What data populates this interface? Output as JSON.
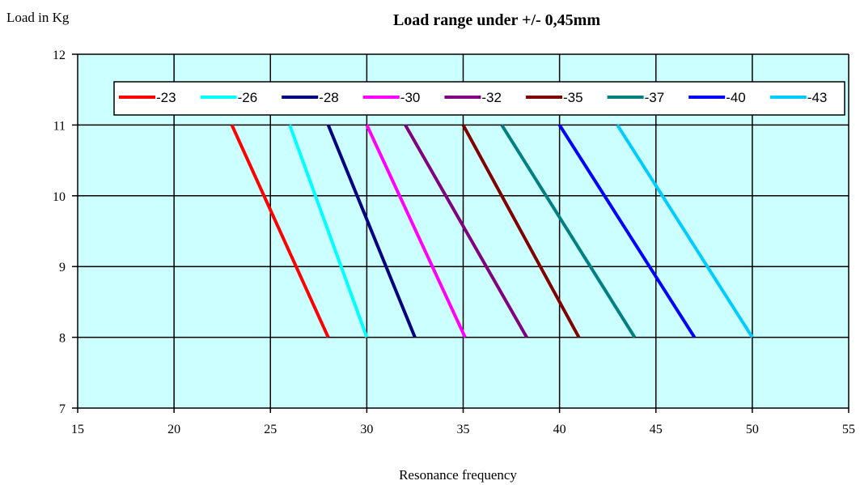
{
  "chart_data": {
    "type": "line",
    "title": "Load range under +/- 0,45mm",
    "xlabel": "Resonance frequency",
    "ylabel": "Load in Kg",
    "xlim": [
      15,
      55
    ],
    "ylim": [
      7,
      12
    ],
    "xticks": [
      "15",
      "20",
      "25",
      "30",
      "35",
      "40",
      "45",
      "50",
      "55"
    ],
    "yticks": [
      "7",
      "8",
      "9",
      "10",
      "11",
      "12"
    ],
    "grid": true,
    "plot_background": "#ccffff",
    "legend_position": "top (inside plot area)",
    "series": [
      {
        "name": "-23",
        "color": "#ff0000",
        "points": [
          [
            23,
            11
          ],
          [
            28,
            8
          ]
        ]
      },
      {
        "name": "-26",
        "color": "#00ffff",
        "points": [
          [
            26,
            11
          ],
          [
            30,
            8
          ]
        ]
      },
      {
        "name": "-28",
        "color": "#000080",
        "points": [
          [
            28,
            11
          ],
          [
            32.5,
            8
          ]
        ]
      },
      {
        "name": "-30",
        "color": "#ff00ff",
        "points": [
          [
            30,
            11
          ],
          [
            35.1,
            8
          ]
        ]
      },
      {
        "name": "-32",
        "color": "#800080",
        "points": [
          [
            32,
            11
          ],
          [
            38.3,
            8
          ]
        ]
      },
      {
        "name": "-35",
        "color": "#800000",
        "points": [
          [
            35,
            11
          ],
          [
            41,
            8
          ]
        ]
      },
      {
        "name": "-37",
        "color": "#008080",
        "points": [
          [
            37,
            11
          ],
          [
            43.9,
            8
          ]
        ]
      },
      {
        "name": "-40",
        "color": "#0000ff",
        "points": [
          [
            40,
            11
          ],
          [
            47,
            8
          ]
        ]
      },
      {
        "name": "-43",
        "color": "#00ccff",
        "points": [
          [
            43,
            11
          ],
          [
            50,
            8
          ]
        ]
      }
    ]
  }
}
